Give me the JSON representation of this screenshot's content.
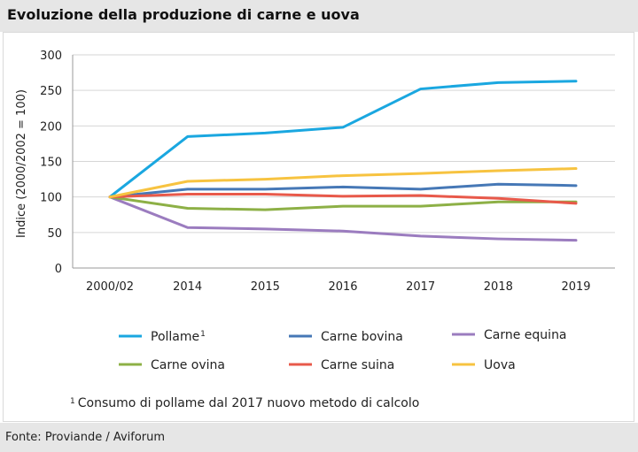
{
  "header": {
    "title": "Evoluzione della produzione di carne e uova"
  },
  "chart_data": {
    "type": "line",
    "title": "Evoluzione della produzione di carne e uova",
    "xlabel": "",
    "ylabel": "Indice (2000/2002 = 100)",
    "categories": [
      "2000/02",
      "2014",
      "2015",
      "2016",
      "2017",
      "2018",
      "2019"
    ],
    "ylim": [
      0,
      300
    ],
    "yticks": [
      0,
      50,
      100,
      150,
      200,
      250,
      300
    ],
    "grid": true,
    "legend_position": "bottom",
    "series": [
      {
        "name": "Pollame",
        "superscript": "1",
        "color": "#1aa7e0",
        "values": [
          100,
          185,
          190,
          198,
          252,
          261,
          263
        ]
      },
      {
        "name": "Carne bovina",
        "superscript": "",
        "color": "#4678b6",
        "values": [
          100,
          111,
          111,
          114,
          111,
          118,
          116
        ]
      },
      {
        "name": "Carne equina",
        "superscript": "",
        "color": "#9b7cbf",
        "values": [
          100,
          57,
          55,
          52,
          45,
          41,
          39
        ]
      },
      {
        "name": "Carne ovina",
        "superscript": "",
        "color": "#8db046",
        "values": [
          100,
          84,
          82,
          87,
          87,
          93,
          93
        ]
      },
      {
        "name": "Carne suina",
        "superscript": "",
        "color": "#e8594a",
        "values": [
          100,
          104,
          104,
          101,
          102,
          98,
          91
        ]
      },
      {
        "name": "Uova",
        "superscript": "",
        "color": "#f7c340",
        "values": [
          100,
          122,
          125,
          130,
          133,
          137,
          140
        ]
      }
    ],
    "footnote": {
      "mark": "1",
      "text": "Consumo di pollame dal 2017 nuovo metodo di calcolo"
    }
  },
  "footer": {
    "source": "Fonte:  Proviande / Aviforum"
  }
}
